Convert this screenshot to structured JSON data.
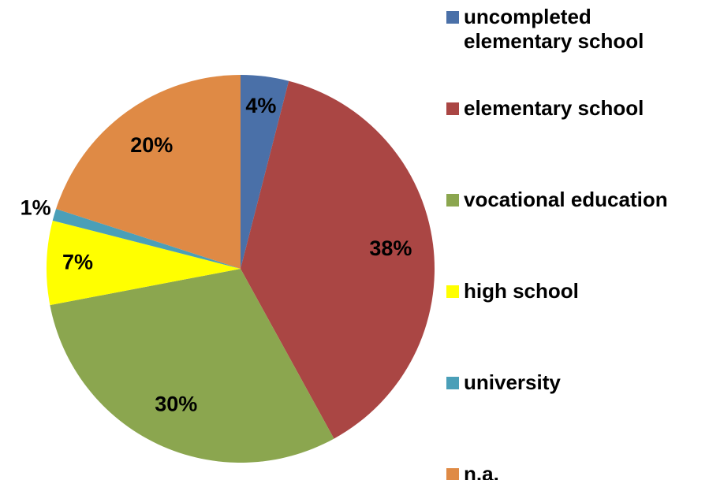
{
  "chart_data": {
    "type": "pie",
    "categories": [
      "uncompleted elementary school",
      "elementary school",
      "vocational education",
      "high school",
      "university",
      "n.a."
    ],
    "values": [
      4,
      38,
      30,
      7,
      1,
      20
    ],
    "value_labels": [
      "4%",
      "38%",
      "30%",
      "7%",
      "1%",
      "20%"
    ],
    "colors": [
      "#4a70a8",
      "#aa4644",
      "#8ba64f",
      "#ffff00",
      "#4a9fb8",
      "#df8a45"
    ],
    "legend": "right"
  }
}
